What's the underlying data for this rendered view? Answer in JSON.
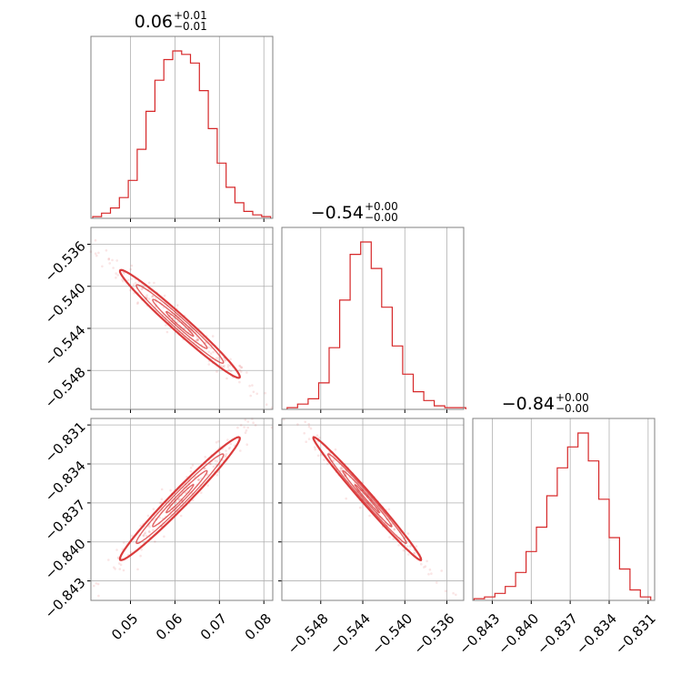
{
  "chart_data": {
    "type": "corner",
    "parameters": [
      {
        "title": "0.06",
        "title_plus": "+0.01",
        "title_minus": "−0.01",
        "ticks": [
          0.05,
          0.06,
          0.07,
          0.08
        ],
        "tick_labels": [
          "0.05",
          "0.06",
          "0.07",
          "0.08"
        ],
        "range": [
          0.0411,
          0.082
        ],
        "hist_x": [
          0.0425,
          0.0445,
          0.0465,
          0.0485,
          0.0505,
          0.0525,
          0.0545,
          0.0565,
          0.0585,
          0.0605,
          0.0625,
          0.0645,
          0.0665,
          0.0685,
          0.0705,
          0.0725,
          0.0745,
          0.0765,
          0.0785,
          0.0805
        ],
        "hist_counts": [
          1,
          3,
          6,
          12,
          22,
          40,
          62,
          80,
          92,
          97,
          95,
          90,
          74,
          52,
          32,
          18,
          9,
          4,
          2,
          1
        ]
      },
      {
        "title": "−0.54",
        "title_plus": "+0.00",
        "title_minus": "−0.00",
        "ticks": [
          -0.548,
          -0.544,
          -0.54,
          -0.536
        ],
        "tick_labels": [
          "−0.548",
          "−0.544",
          "−0.540",
          "−0.536"
        ],
        "range": [
          -0.5517,
          -0.5344
        ],
        "hist_x": [
          -0.5507,
          -0.5497,
          -0.5487,
          -0.5477,
          -0.5467,
          -0.5457,
          -0.5447,
          -0.5437,
          -0.5427,
          -0.5417,
          -0.5407,
          -0.5397,
          -0.5387,
          -0.5377,
          -0.5367,
          -0.5357,
          -0.5347
        ],
        "hist_counts": [
          1,
          3,
          6,
          15,
          35,
          62,
          88,
          95,
          80,
          58,
          36,
          20,
          10,
          5,
          2,
          1,
          1
        ]
      },
      {
        "title": "−0.84",
        "title_plus": "+0.00",
        "title_minus": "−0.00",
        "ticks": [
          -0.843,
          -0.84,
          -0.837,
          -0.834,
          -0.831
        ],
        "tick_labels": [
          "−0.843",
          "−0.840",
          "−0.837",
          "−0.834",
          "−0.831"
        ],
        "range": [
          -0.8445,
          -0.8305
        ],
        "hist_x": [
          -0.844,
          -0.8432,
          -0.8424,
          -0.8416,
          -0.8408,
          -0.84,
          -0.8392,
          -0.8384,
          -0.8376,
          -0.8368,
          -0.836,
          -0.8352,
          -0.8344,
          -0.8336,
          -0.8328,
          -0.832,
          -0.8312
        ],
        "hist_counts": [
          1,
          2,
          4,
          8,
          16,
          28,
          42,
          60,
          76,
          88,
          96,
          80,
          58,
          36,
          18,
          6,
          2
        ]
      }
    ],
    "correlations": {
      "p1_p0": -0.98,
      "p2_p0": 0.98,
      "p2_p1": -0.99
    },
    "grid": true,
    "color": "#d62728"
  }
}
